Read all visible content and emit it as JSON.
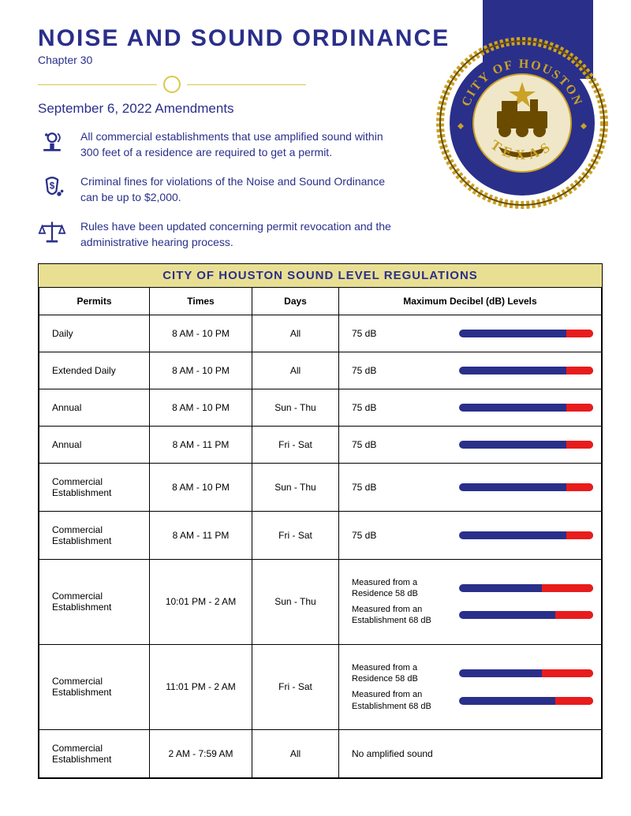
{
  "header": {
    "title": "NOISE AND SOUND ORDINANCE",
    "chapter": "Chapter 30",
    "amend_date": "September 6, 2022 Amendments"
  },
  "seal": {
    "top_text": "CITY OF HOUSTON",
    "bottom_text": "TEXAS",
    "ring_color": "#2a2f8a",
    "rope_color": "#c9a227",
    "inner_bg": "#f0e7c8"
  },
  "accent_colors": {
    "navy": "#2a2f8a",
    "gold": "#d9c94b",
    "bar_blue": "#2a2f8a",
    "bar_red": "#e81c1c",
    "header_band": "#e9df93"
  },
  "bullets": [
    {
      "icon": "sound-permit",
      "text": "All commercial establishments that use amplified sound within 300 feet of a residence are required to get a permit."
    },
    {
      "icon": "money-fine",
      "text": "Criminal fines for violations of the Noise and Sound Ordinance can be up to $2,000."
    },
    {
      "icon": "scales",
      "text": "Rules have been updated concerning permit revocation and the administrative hearing process."
    }
  ],
  "table": {
    "title": "CITY OF HOUSTON SOUND LEVEL REGULATIONS",
    "columns": [
      "Permits",
      "Times",
      "Days",
      "Maximum Decibel (dB) Levels"
    ],
    "rows": [
      {
        "permit": "Daily",
        "time": "8 AM - 10 PM",
        "days": "All",
        "levels": [
          {
            "label": "75 dB",
            "blue_pct": 80,
            "red_pct": 20
          }
        ]
      },
      {
        "permit": "Extended Daily",
        "time": "8 AM - 10 PM",
        "days": "All",
        "levels": [
          {
            "label": "75 dB",
            "blue_pct": 80,
            "red_pct": 20
          }
        ]
      },
      {
        "permit": "Annual",
        "time": "8 AM - 10 PM",
        "days": "Sun - Thu",
        "levels": [
          {
            "label": "75 dB",
            "blue_pct": 80,
            "red_pct": 20
          }
        ]
      },
      {
        "permit": "Annual",
        "time": "8 AM - 11 PM",
        "days": "Fri - Sat",
        "levels": [
          {
            "label": "75 dB",
            "blue_pct": 80,
            "red_pct": 20
          }
        ]
      },
      {
        "permit": "Commercial Establishment",
        "time": "8 AM - 10 PM",
        "days": "Sun - Thu",
        "levels": [
          {
            "label": "75 dB",
            "blue_pct": 80,
            "red_pct": 20
          }
        ]
      },
      {
        "permit": "Commercial Establishment",
        "time": "8 AM - 11 PM",
        "days": "Fri - Sat",
        "levels": [
          {
            "label": "75 dB",
            "blue_pct": 80,
            "red_pct": 20
          }
        ]
      },
      {
        "permit": "Commercial Establishment",
        "time": "10:01 PM - 2 AM",
        "days": "Sun - Thu",
        "levels": [
          {
            "label": "Measured from a Residence 58 dB",
            "blue_pct": 62,
            "red_pct": 38
          },
          {
            "label": "Measured from an Establishment 68 dB",
            "blue_pct": 72,
            "red_pct": 28
          }
        ]
      },
      {
        "permit": "Commercial Establishment",
        "time": "11:01 PM - 2 AM",
        "days": "Fri - Sat",
        "levels": [
          {
            "label": "Measured from a Residence 58 dB",
            "blue_pct": 62,
            "red_pct": 38
          },
          {
            "label": "Measured from an Establishment  68 dB",
            "blue_pct": 72,
            "red_pct": 28
          }
        ]
      },
      {
        "permit": "Commercial Establishment",
        "time": "2 AM - 7:59 AM",
        "days": "All",
        "levels": [
          {
            "label": "No amplified sound",
            "no_bar": true
          }
        ]
      }
    ]
  }
}
